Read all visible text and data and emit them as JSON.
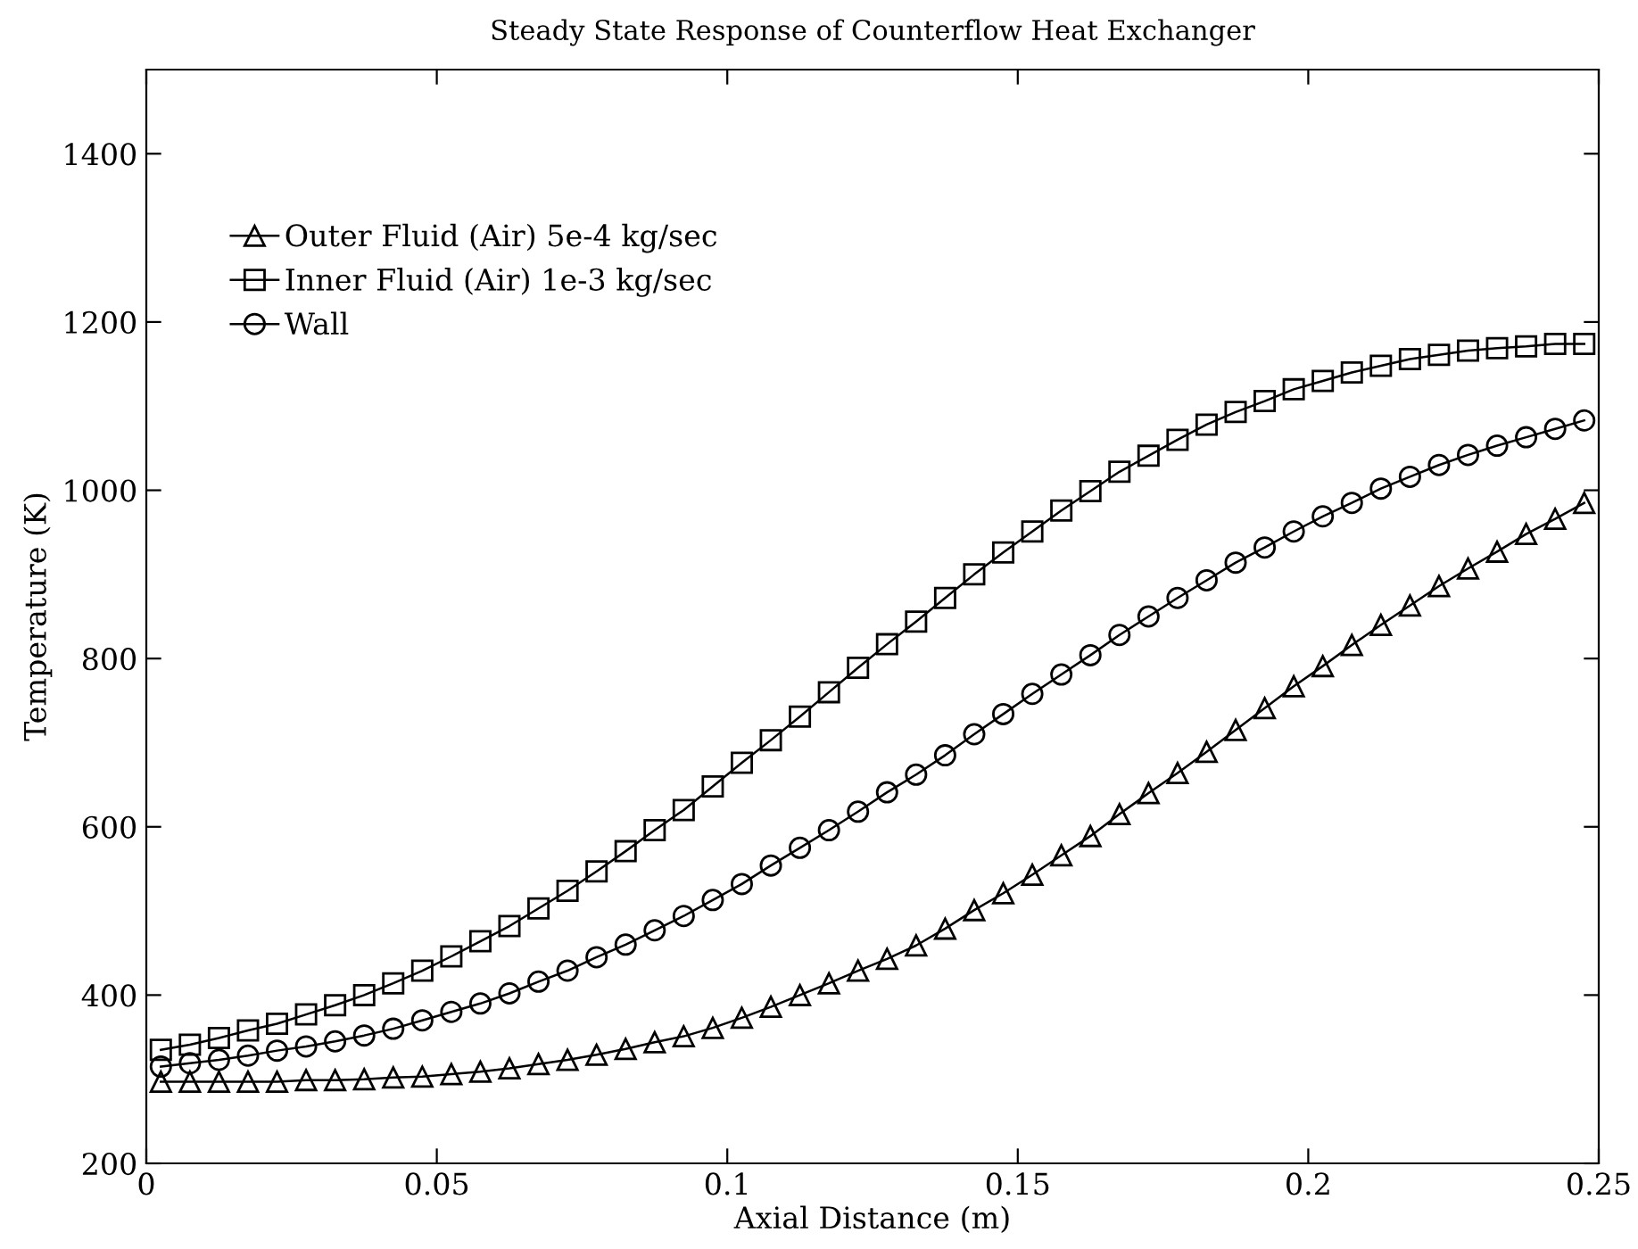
{
  "chart_data": {
    "type": "line",
    "title": "Steady State Response of Counterflow Heat Exchanger",
    "xlabel": "Axial Distance (m)",
    "ylabel": "Temperature (K)",
    "x": [
      0.0025,
      0.0075,
      0.0125,
      0.0175,
      0.0225,
      0.0275,
      0.0325,
      0.0375,
      0.0425,
      0.0475,
      0.0525,
      0.0575,
      0.0625,
      0.0675,
      0.0725,
      0.0775,
      0.0825,
      0.0875,
      0.0925,
      0.0975,
      0.1025,
      0.1075,
      0.1125,
      0.1175,
      0.1225,
      0.1275,
      0.1325,
      0.1375,
      0.1425,
      0.1475,
      0.1525,
      0.1575,
      0.1625,
      0.1675,
      0.1725,
      0.1775,
      0.1825,
      0.1875,
      0.1925,
      0.1975,
      0.2025,
      0.2075,
      0.2125,
      0.2175,
      0.2225,
      0.2275,
      0.2325,
      0.2375,
      0.2425,
      0.2475
    ],
    "series": [
      {
        "name": "Outer Fluid (Air) 5e-4 kg/sec",
        "color": "#000000",
        "marker": "triangle",
        "values": [
          297,
          297,
          297,
          297,
          297,
          299,
          299,
          300,
          302,
          303,
          306,
          309,
          313,
          318,
          323,
          329,
          336,
          344,
          351,
          361,
          373,
          386,
          400,
          414,
          429,
          443,
          459,
          479,
          501,
          521,
          543,
          566,
          589,
          615,
          640,
          664,
          689,
          715,
          741,
          767,
          791,
          816,
          840,
          863,
          886,
          907,
          927,
          948,
          966,
          985
        ]
      },
      {
        "name": "Inner Fluid (Air) 1e-3 kg/sec",
        "color": "#000000",
        "marker": "square",
        "values": [
          335,
          341,
          349,
          358,
          366,
          377,
          388,
          400,
          414,
          429,
          446,
          464,
          482,
          503,
          524,
          547,
          571,
          596,
          620,
          648,
          676,
          703,
          731,
          760,
          789,
          817,
          844,
          872,
          900,
          926,
          951,
          976,
          999,
          1022,
          1041,
          1060,
          1078,
          1093,
          1106,
          1120,
          1130,
          1140,
          1148,
          1156,
          1161,
          1166,
          1169,
          1171,
          1174,
          1174
        ]
      },
      {
        "name": "Wall",
        "color": "#000000",
        "marker": "circle",
        "values": [
          315,
          319,
          323,
          328,
          334,
          339,
          345,
          352,
          360,
          370,
          380,
          390,
          402,
          416,
          429,
          445,
          460,
          477,
          494,
          513,
          532,
          554,
          575,
          596,
          618,
          641,
          662,
          685,
          710,
          734,
          758,
          781,
          804,
          828,
          850,
          872,
          893,
          914,
          932,
          951,
          969,
          985,
          1002,
          1016,
          1030,
          1042,
          1053,
          1063,
          1073,
          1083
        ]
      }
    ],
    "xlim": [
      0,
      0.25
    ],
    "xticks": [
      0,
      0.05,
      0.1,
      0.15,
      0.2,
      0.25
    ],
    "ylim": [
      200,
      1500
    ],
    "yticks": [
      200,
      400,
      600,
      800,
      1000,
      1200,
      1400
    ],
    "grid": false,
    "legend": "top left",
    "line_style": "solid"
  }
}
